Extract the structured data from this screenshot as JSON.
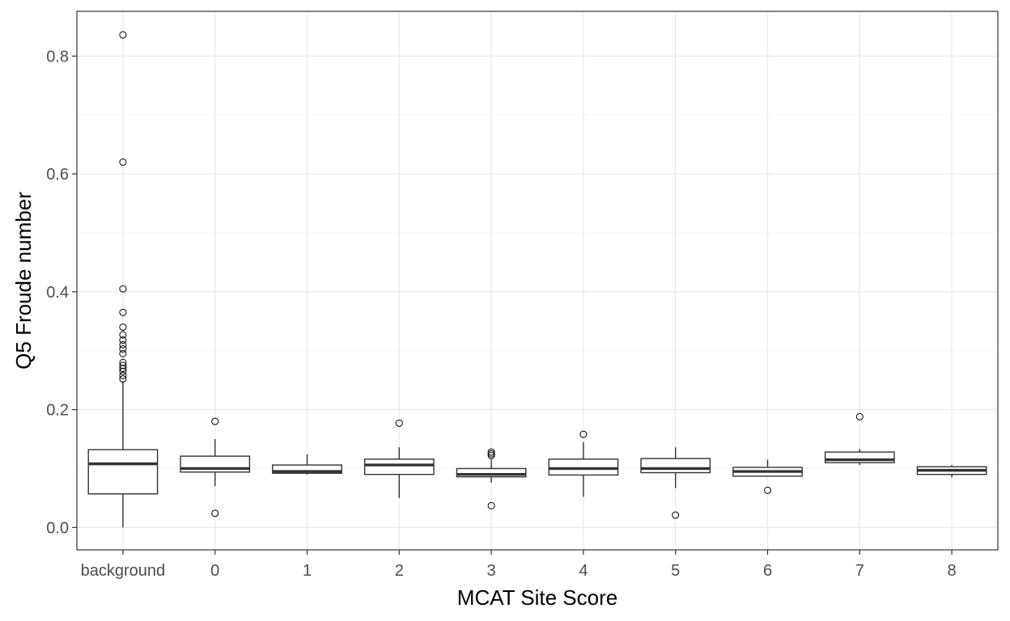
{
  "chart_data": {
    "type": "boxplot",
    "xlabel": "MCAT Site Score",
    "ylabel": "Q5 Froude number",
    "ylim": [
      -0.038,
      0.876
    ],
    "y_ticks": [
      0.0,
      0.2,
      0.4,
      0.6,
      0.8
    ],
    "y_tick_labels": [
      "0.0",
      "0.2",
      "0.4",
      "0.6",
      "0.8"
    ],
    "y_minor_ticks": [
      0.1,
      0.3,
      0.5,
      0.7
    ],
    "categories": [
      "background",
      "0",
      "1",
      "2",
      "3",
      "4",
      "5",
      "6",
      "7",
      "8"
    ],
    "boxes": [
      {
        "category": "background",
        "whisker_low": 0.0,
        "q1": 0.057,
        "median": 0.108,
        "q3": 0.132,
        "whisker_high": 0.248,
        "outliers": [
          0.836,
          0.62,
          0.405,
          0.365,
          0.34,
          0.327,
          0.318,
          0.31,
          0.303,
          0.295,
          0.28,
          0.275,
          0.27,
          0.265,
          0.258,
          0.252
        ]
      },
      {
        "category": "0",
        "whisker_low": 0.07,
        "q1": 0.094,
        "median": 0.1,
        "q3": 0.121,
        "whisker_high": 0.15,
        "outliers": [
          0.18,
          0.024
        ]
      },
      {
        "category": "1",
        "whisker_low": 0.09,
        "q1": 0.092,
        "median": 0.095,
        "q3": 0.106,
        "whisker_high": 0.124,
        "outliers": []
      },
      {
        "category": "2",
        "whisker_low": 0.05,
        "q1": 0.09,
        "median": 0.106,
        "q3": 0.116,
        "whisker_high": 0.136,
        "outliers": [
          0.177
        ]
      },
      {
        "category": "3",
        "whisker_low": 0.076,
        "q1": 0.086,
        "median": 0.09,
        "q3": 0.1,
        "whisker_high": 0.115,
        "outliers": [
          0.128,
          0.125,
          0.122,
          0.037
        ]
      },
      {
        "category": "4",
        "whisker_low": 0.052,
        "q1": 0.089,
        "median": 0.1,
        "q3": 0.116,
        "whisker_high": 0.145,
        "outliers": [
          0.158
        ]
      },
      {
        "category": "5",
        "whisker_low": 0.067,
        "q1": 0.093,
        "median": 0.1,
        "q3": 0.117,
        "whisker_high": 0.136,
        "outliers": [
          0.021
        ]
      },
      {
        "category": "6",
        "whisker_low": 0.086,
        "q1": 0.087,
        "median": 0.095,
        "q3": 0.102,
        "whisker_high": 0.115,
        "outliers": [
          0.063
        ]
      },
      {
        "category": "7",
        "whisker_low": 0.106,
        "q1": 0.11,
        "median": 0.115,
        "q3": 0.128,
        "whisker_high": 0.133,
        "outliers": [
          0.188
        ]
      },
      {
        "category": "8",
        "whisker_low": 0.085,
        "q1": 0.09,
        "median": 0.097,
        "q3": 0.103,
        "whisker_high": 0.106,
        "outliers": []
      }
    ],
    "grid": true,
    "legend": "none",
    "colors": {
      "panel_border": "#333333",
      "grid_major": "#ebebeb",
      "grid_minor": "#f4f4f4",
      "box_stroke": "#333333",
      "box_fill": "#ffffff",
      "tick_label": "#4d4d4d",
      "axis_title": "#000000"
    }
  }
}
